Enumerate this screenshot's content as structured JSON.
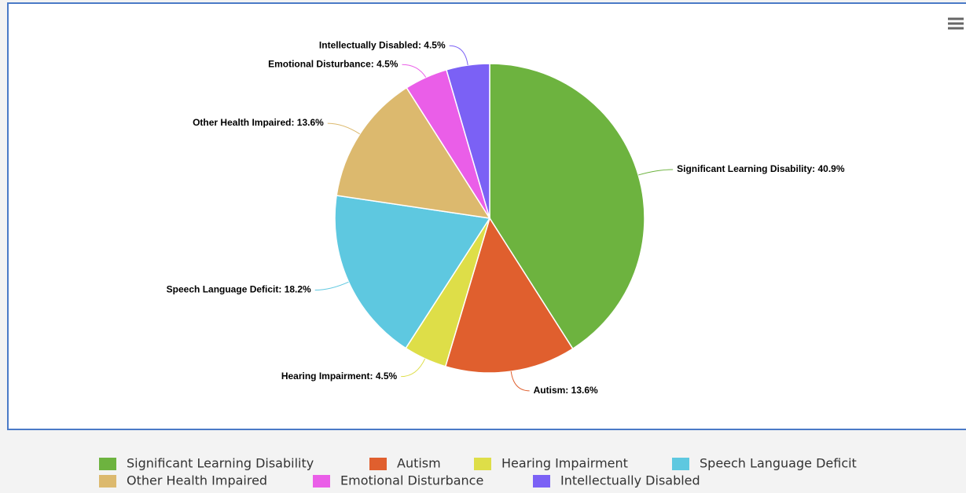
{
  "chart_data": {
    "type": "pie",
    "categories": [
      "Significant Learning Disability",
      "Autism",
      "Hearing Impairment",
      "Speech Language Deficit",
      "Other Health Impaired",
      "Emotional Disturbance",
      "Intellectually Disabled"
    ],
    "values": [
      40.9,
      13.6,
      4.5,
      18.2,
      13.6,
      4.5,
      4.5
    ],
    "value_labels": [
      "Significant Learning Disability: 40.9%",
      "Autism: 13.6%",
      "Hearing Impairment: 4.5%",
      "Speech Language Deficit: 18.2%",
      "Other Health Impaired: 13.6%",
      "Emotional Disturbance: 4.5%",
      "Intellectually Disabled: 4.5%"
    ],
    "colors": [
      "#6db33f",
      "#e05f2e",
      "#dede48",
      "#5ec8e0",
      "#dcb96e",
      "#ea5ee8",
      "#7b61f5"
    ]
  }
}
